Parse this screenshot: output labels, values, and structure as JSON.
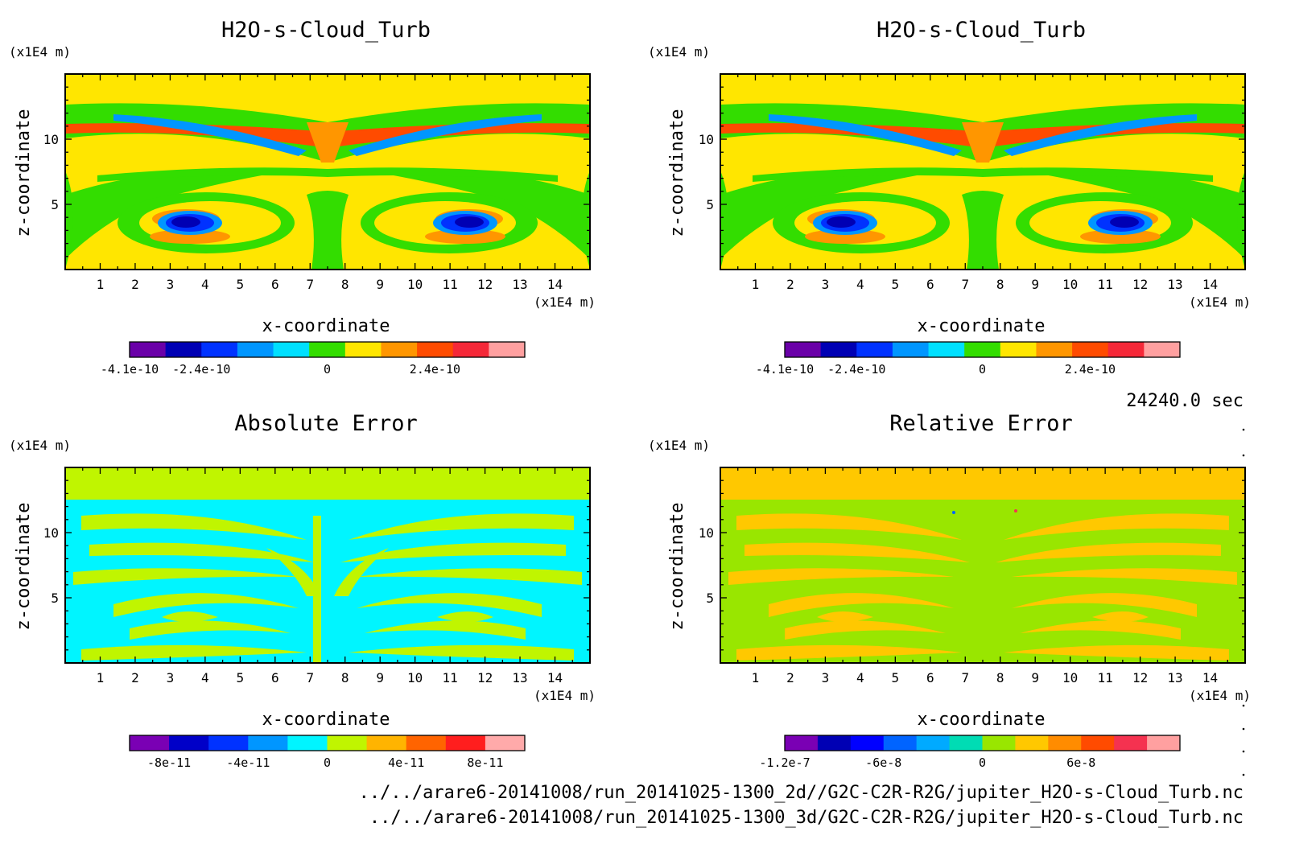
{
  "chart_data": [
    {
      "type": "heatmap",
      "title": "H2O-s-Cloud_Turb",
      "xlabel": "x-coordinate",
      "ylabel": "z-coordinate",
      "x_unit": "(x1E4 m)",
      "y_unit": "(x1E4 m)",
      "xticks": [
        "1",
        "2",
        "3",
        "4",
        "5",
        "6",
        "7",
        "8",
        "9",
        "10",
        "11",
        "12",
        "13",
        "14"
      ],
      "yticks": [
        "5",
        "10"
      ],
      "xlim": [
        0,
        15
      ],
      "ylim": [
        0,
        15
      ],
      "colorbar": {
        "colors": [
          "#6a00a8",
          "#0000b4",
          "#0032ff",
          "#0096ff",
          "#00e0ff",
          "#33dd00",
          "#ffe600",
          "#ff9600",
          "#ff4b00",
          "#f52838",
          "#ffa0a0"
        ],
        "tick_labels": [
          "-4.1e-10",
          "-2.4e-10",
          "0",
          "2.4e-10"
        ]
      },
      "field": "cloud"
    },
    {
      "type": "heatmap",
      "title": "H2O-s-Cloud_Turb",
      "xlabel": "x-coordinate",
      "ylabel": "z-coordinate",
      "x_unit": "(x1E4 m)",
      "y_unit": "(x1E4 m)",
      "xticks": [
        "1",
        "2",
        "3",
        "4",
        "5",
        "6",
        "7",
        "8",
        "9",
        "10",
        "11",
        "12",
        "13",
        "14"
      ],
      "yticks": [
        "5",
        "10"
      ],
      "xlim": [
        0,
        15
      ],
      "ylim": [
        0,
        15
      ],
      "colorbar": {
        "colors": [
          "#6a00a8",
          "#0000b4",
          "#0032ff",
          "#0096ff",
          "#00e0ff",
          "#33dd00",
          "#ffe600",
          "#ff9600",
          "#ff4b00",
          "#f52838",
          "#ffa0a0"
        ],
        "tick_labels": [
          "-4.1e-10",
          "-2.4e-10",
          "0",
          "2.4e-10"
        ]
      },
      "field": "cloud"
    },
    {
      "type": "heatmap",
      "title": "Absolute Error",
      "xlabel": "x-coordinate",
      "ylabel": "z-coordinate",
      "x_unit": "(x1E4 m)",
      "y_unit": "(x1E4 m)",
      "xticks": [
        "1",
        "2",
        "3",
        "4",
        "5",
        "6",
        "7",
        "8",
        "9",
        "10",
        "11",
        "12",
        "13",
        "14"
      ],
      "yticks": [
        "5",
        "10"
      ],
      "xlim": [
        0,
        15
      ],
      "ylim": [
        0,
        15
      ],
      "colorbar": {
        "colors": [
          "#7a00b4",
          "#0000c8",
          "#0032ff",
          "#0096ff",
          "#00f5ff",
          "#c0f500",
          "#ffb400",
          "#ff6400",
          "#ff1e1e",
          "#ffaaaa"
        ],
        "tick_labels": [
          "-8e-11",
          "-4e-11",
          "0",
          "4e-11",
          "8e-11"
        ]
      },
      "field": "abs"
    },
    {
      "type": "heatmap",
      "title": "Relative Error",
      "xlabel": "x-coordinate",
      "ylabel": "z-coordinate",
      "x_unit": "(x1E4 m)",
      "y_unit": "(x1E4 m)",
      "xticks": [
        "1",
        "2",
        "3",
        "4",
        "5",
        "6",
        "7",
        "8",
        "9",
        "10",
        "11",
        "12",
        "13",
        "14"
      ],
      "yticks": [
        "5",
        "10"
      ],
      "xlim": [
        0,
        15
      ],
      "ylim": [
        0,
        15
      ],
      "colorbar": {
        "colors": [
          "#7a00b4",
          "#0000b4",
          "#0000ff",
          "#0064ff",
          "#00aaff",
          "#00dcb4",
          "#99e600",
          "#ffc800",
          "#ff8c00",
          "#ff4b00",
          "#f53250",
          "#ffa0a0"
        ],
        "tick_labels": [
          "-1.2e-7",
          "-6e-8",
          "0",
          "6e-8"
        ]
      },
      "field": "rel"
    }
  ],
  "time_label": "24240.0 sec",
  "files": [
    "../../arare6-20141008/run_20141025-1300_2d//G2C-C2R-R2G/jupiter_H2O-s-Cloud_Turb.nc",
    "../../arare6-20141008/run_20141025-1300_3d/G2C-C2R-R2G/jupiter_H2O-s-Cloud_Turb.nc"
  ]
}
